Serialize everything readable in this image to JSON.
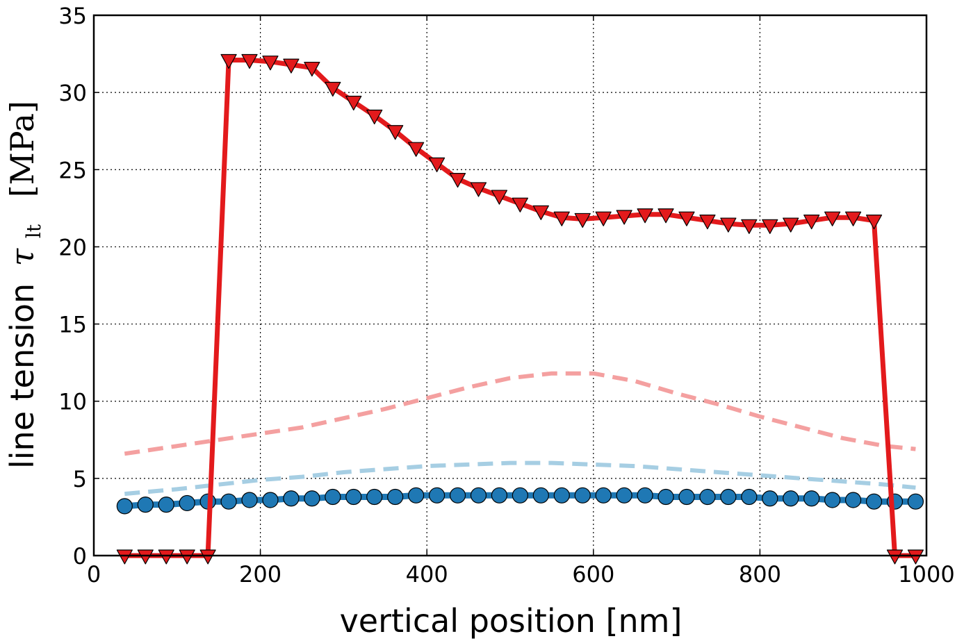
{
  "chart_data": {
    "type": "line",
    "title": "",
    "xlabel": "vertical position [nm]",
    "ylabel": {
      "text": "line tension",
      "symbol": "τ",
      "subscript": "lt",
      "unit": "[MPa]"
    },
    "xlim": [
      0,
      1000
    ],
    "ylim": [
      0,
      35
    ],
    "xticks": [
      0,
      200,
      400,
      600,
      800,
      1000
    ],
    "yticks": [
      0,
      5,
      10,
      15,
      20,
      25,
      30,
      35
    ],
    "xtick_labels": [
      "0",
      "200",
      "400",
      "600",
      "800",
      "1000"
    ],
    "ytick_labels": [
      "0",
      "5",
      "10",
      "15",
      "20",
      "25",
      "30",
      "35"
    ],
    "grid": true,
    "legend": null,
    "series": [
      {
        "name": "red-dashed",
        "color": "#f4a0a0",
        "style": "dashed",
        "marker": "none",
        "x": [
          37,
          100,
          150,
          200,
          250,
          300,
          350,
          400,
          450,
          500,
          550,
          600,
          650,
          700,
          750,
          800,
          850,
          900,
          950,
          987
        ],
        "y": [
          6.6,
          7.1,
          7.5,
          7.9,
          8.3,
          8.9,
          9.5,
          10.2,
          10.9,
          11.5,
          11.8,
          11.8,
          11.3,
          10.5,
          9.8,
          9.0,
          8.3,
          7.6,
          7.1,
          6.9
        ]
      },
      {
        "name": "blue-dashed",
        "color": "#a6cee3",
        "style": "dashed",
        "marker": "none",
        "x": [
          37,
          100,
          150,
          200,
          250,
          300,
          350,
          400,
          450,
          500,
          550,
          600,
          650,
          700,
          750,
          800,
          850,
          900,
          950,
          987
        ],
        "y": [
          4.0,
          4.3,
          4.6,
          4.9,
          5.1,
          5.4,
          5.6,
          5.8,
          5.9,
          6.0,
          6.0,
          5.9,
          5.8,
          5.6,
          5.4,
          5.2,
          5.0,
          4.8,
          4.6,
          4.4
        ]
      },
      {
        "name": "blue-circles",
        "color": "#1f78b4",
        "style": "solid",
        "marker": "circle",
        "x": [
          37,
          62,
          87,
          112,
          137,
          162,
          187,
          212,
          237,
          262,
          287,
          312,
          337,
          362,
          387,
          412,
          437,
          462,
          487,
          512,
          537,
          562,
          587,
          612,
          637,
          662,
          687,
          712,
          737,
          762,
          787,
          812,
          837,
          862,
          887,
          912,
          937,
          962,
          987
        ],
        "y": [
          3.2,
          3.3,
          3.3,
          3.4,
          3.5,
          3.5,
          3.6,
          3.6,
          3.7,
          3.7,
          3.8,
          3.8,
          3.8,
          3.8,
          3.9,
          3.9,
          3.9,
          3.9,
          3.9,
          3.9,
          3.9,
          3.9,
          3.9,
          3.9,
          3.9,
          3.9,
          3.8,
          3.8,
          3.8,
          3.8,
          3.8,
          3.7,
          3.7,
          3.7,
          3.6,
          3.6,
          3.5,
          3.5,
          3.5
        ]
      },
      {
        "name": "red-triangles",
        "color": "#e31a1c",
        "style": "solid",
        "marker": "triangle-down",
        "x": [
          37,
          62,
          87,
          112,
          137,
          162,
          187,
          212,
          237,
          262,
          287,
          312,
          337,
          362,
          387,
          412,
          437,
          462,
          487,
          512,
          537,
          562,
          587,
          612,
          637,
          662,
          687,
          712,
          737,
          762,
          787,
          812,
          837,
          862,
          887,
          912,
          937,
          962,
          987
        ],
        "y": [
          0,
          0,
          0,
          0,
          0,
          32.1,
          32.1,
          32.0,
          31.8,
          31.6,
          30.3,
          29.4,
          28.5,
          27.5,
          26.4,
          25.4,
          24.4,
          23.8,
          23.3,
          22.8,
          22.3,
          21.9,
          21.8,
          21.9,
          22.0,
          22.1,
          22.1,
          21.9,
          21.7,
          21.5,
          21.4,
          21.4,
          21.5,
          21.7,
          21.9,
          21.9,
          21.7,
          0,
          0
        ]
      }
    ]
  }
}
